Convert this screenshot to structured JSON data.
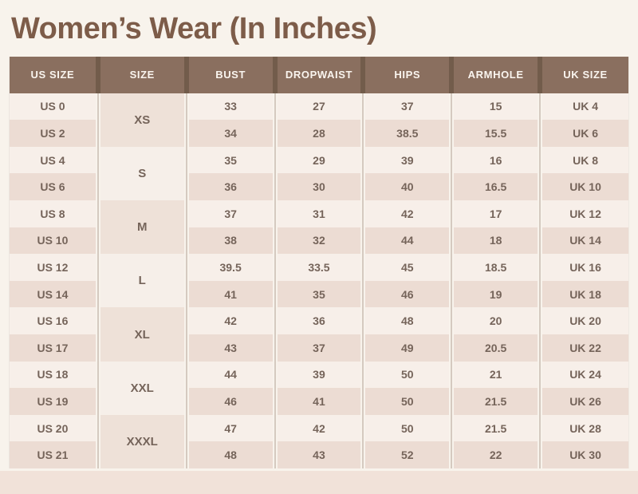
{
  "title": "Women’s Wear (In Inches)",
  "colors": {
    "page_bg": "#f8f3ec",
    "title_color": "#7d5c49",
    "header_bg": "#8a6f5f",
    "header_sep": "#725c4b",
    "header_text": "#faf5ef",
    "row_light": "#f7efe9",
    "row_dark": "#ecdcd3",
    "group_dark": "#eee1d8",
    "group_light": "#f6efe9",
    "cell_text": "#75645a",
    "bottom_band": "#f1e2d9"
  },
  "chart_data": {
    "type": "table",
    "title": "Women’s Wear (In Inches)",
    "columns": [
      "US SIZE",
      "SIZE",
      "BUST",
      "DROPWAIST",
      "HIPS",
      "ARMHOLE",
      "UK SIZE"
    ],
    "groups": [
      {
        "size": "XS",
        "rows": [
          {
            "us": "US 0",
            "bust": "33",
            "dropwaist": "27",
            "hips": "37",
            "armhole": "15",
            "uk": "UK 4"
          },
          {
            "us": "US 2",
            "bust": "34",
            "dropwaist": "28",
            "hips": "38.5",
            "armhole": "15.5",
            "uk": "UK 6"
          }
        ]
      },
      {
        "size": "S",
        "rows": [
          {
            "us": "US 4",
            "bust": "35",
            "dropwaist": "29",
            "hips": "39",
            "armhole": "16",
            "uk": "UK 8"
          },
          {
            "us": "US 6",
            "bust": "36",
            "dropwaist": "30",
            "hips": "40",
            "armhole": "16.5",
            "uk": "UK 10"
          }
        ]
      },
      {
        "size": "M",
        "rows": [
          {
            "us": "US 8",
            "bust": "37",
            "dropwaist": "31",
            "hips": "42",
            "armhole": "17",
            "uk": "UK 12"
          },
          {
            "us": "US 10",
            "bust": "38",
            "dropwaist": "32",
            "hips": "44",
            "armhole": "18",
            "uk": "UK 14"
          }
        ]
      },
      {
        "size": "L",
        "rows": [
          {
            "us": "US 12",
            "bust": "39.5",
            "dropwaist": "33.5",
            "hips": "45",
            "armhole": "18.5",
            "uk": "UK 16"
          },
          {
            "us": "US 14",
            "bust": "41",
            "dropwaist": "35",
            "hips": "46",
            "armhole": "19",
            "uk": "UK 18"
          }
        ]
      },
      {
        "size": "XL",
        "rows": [
          {
            "us": "US 16",
            "bust": "42",
            "dropwaist": "36",
            "hips": "48",
            "armhole": "20",
            "uk": "UK 20"
          },
          {
            "us": "US 17",
            "bust": "43",
            "dropwaist": "37",
            "hips": "49",
            "armhole": "20.5",
            "uk": "UK 22"
          }
        ]
      },
      {
        "size": "XXL",
        "rows": [
          {
            "us": "US 18",
            "bust": "44",
            "dropwaist": "39",
            "hips": "50",
            "armhole": "21",
            "uk": "UK 24"
          },
          {
            "us": "US 19",
            "bust": "46",
            "dropwaist": "41",
            "hips": "50",
            "armhole": "21.5",
            "uk": "UK 26"
          }
        ]
      },
      {
        "size": "XXXL",
        "rows": [
          {
            "us": "US 20",
            "bust": "47",
            "dropwaist": "42",
            "hips": "50",
            "armhole": "21.5",
            "uk": "UK 28"
          },
          {
            "us": "US 21",
            "bust": "48",
            "dropwaist": "43",
            "hips": "52",
            "armhole": "22",
            "uk": "UK 30"
          }
        ]
      }
    ]
  }
}
